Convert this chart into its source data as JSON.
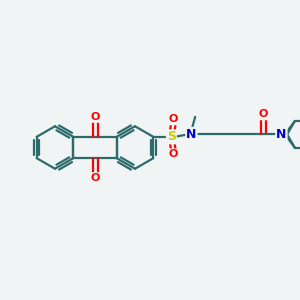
{
  "bg_color": "#f0f4f5",
  "bond_color": "#2d6b6b",
  "bond_width": 1.6,
  "atom_colors": {
    "O": "#ff0000",
    "N": "#0000cc",
    "S": "#cccc00",
    "C": "#2d6b6b"
  }
}
